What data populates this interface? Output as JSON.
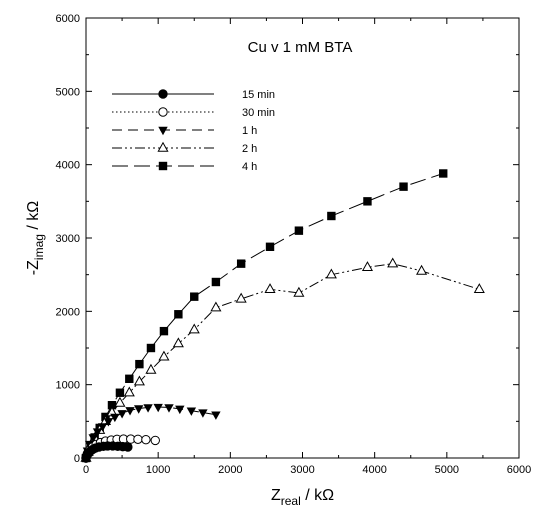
{
  "chart_data": {
    "type": "scatter",
    "title": "Cu v 1 mM BTA",
    "xlabel": {
      "main": "Z",
      "sub": "real",
      "unit": " / kΩ"
    },
    "ylabel": {
      "main": "-Z",
      "sub": "imag",
      "unit": " / kΩ"
    },
    "xlim": [
      0,
      6000
    ],
    "ylim": [
      0,
      6000
    ],
    "xticks": [
      0,
      1000,
      2000,
      3000,
      4000,
      5000,
      6000
    ],
    "yticks": [
      0,
      1000,
      2000,
      3000,
      4000,
      5000,
      6000
    ],
    "xtick_labels": [
      "0",
      "1000",
      "2000",
      "3000",
      "4000",
      "5000",
      "6000"
    ],
    "ytick_labels": [
      "0",
      "1000",
      "2000",
      "3000",
      "4000",
      "5000",
      "6000"
    ],
    "grid": false,
    "legend_position": "top-left",
    "series": [
      {
        "name": "15 min",
        "marker": "filled-circle",
        "line": "solid",
        "x": [
          0,
          10,
          20,
          40,
          60,
          90,
          130,
          180,
          240,
          300,
          370,
          440,
          510,
          580
        ],
        "y": [
          0,
          25,
          45,
          75,
          95,
          115,
          135,
          150,
          160,
          165,
          165,
          160,
          155,
          150
        ]
      },
      {
        "name": "30 min",
        "marker": "open-circle",
        "line": "dotted",
        "x": [
          0,
          20,
          50,
          90,
          140,
          200,
          270,
          350,
          430,
          520,
          620,
          720,
          830,
          960
        ],
        "y": [
          0,
          60,
          110,
          150,
          185,
          210,
          230,
          245,
          255,
          258,
          258,
          255,
          250,
          240
        ]
      },
      {
        "name": "1 h",
        "marker": "filled-triangle-down",
        "line": "dashed",
        "x": [
          0,
          20,
          50,
          100,
          160,
          230,
          310,
          400,
          500,
          610,
          730,
          860,
          1000,
          1150,
          1300,
          1460,
          1620,
          1800
        ],
        "y": [
          0,
          100,
          190,
          280,
          360,
          430,
          500,
          560,
          610,
          650,
          675,
          690,
          695,
          690,
          670,
          645,
          620,
          590
        ]
      },
      {
        "name": "2 h",
        "marker": "open-triangle-up",
        "line": "dash-dot-dot",
        "x": [
          0,
          30,
          70,
          120,
          190,
          270,
          360,
          470,
          600,
          740,
          900,
          1080,
          1280,
          1500,
          1800,
          2150,
          2550,
          2950,
          3400,
          3900,
          4250,
          4650,
          5450
        ],
        "y": [
          0,
          80,
          170,
          270,
          380,
          500,
          620,
          750,
          890,
          1040,
          1200,
          1380,
          1560,
          1750,
          2050,
          2170,
          2300,
          2250,
          2500,
          2600,
          2650,
          2550,
          2300
        ]
      },
      {
        "name": "4 h",
        "marker": "filled-square",
        "line": "long-dash",
        "x": [
          0,
          30,
          70,
          120,
          190,
          270,
          360,
          470,
          600,
          740,
          900,
          1080,
          1280,
          1500,
          1800,
          2150,
          2550,
          2950,
          3400,
          3900,
          4400,
          4950
        ],
        "y": [
          0,
          80,
          170,
          280,
          410,
          560,
          720,
          890,
          1080,
          1280,
          1500,
          1730,
          1960,
          2200,
          2400,
          2650,
          2880,
          3100,
          3300,
          3500,
          3700,
          3880
        ]
      }
    ]
  }
}
